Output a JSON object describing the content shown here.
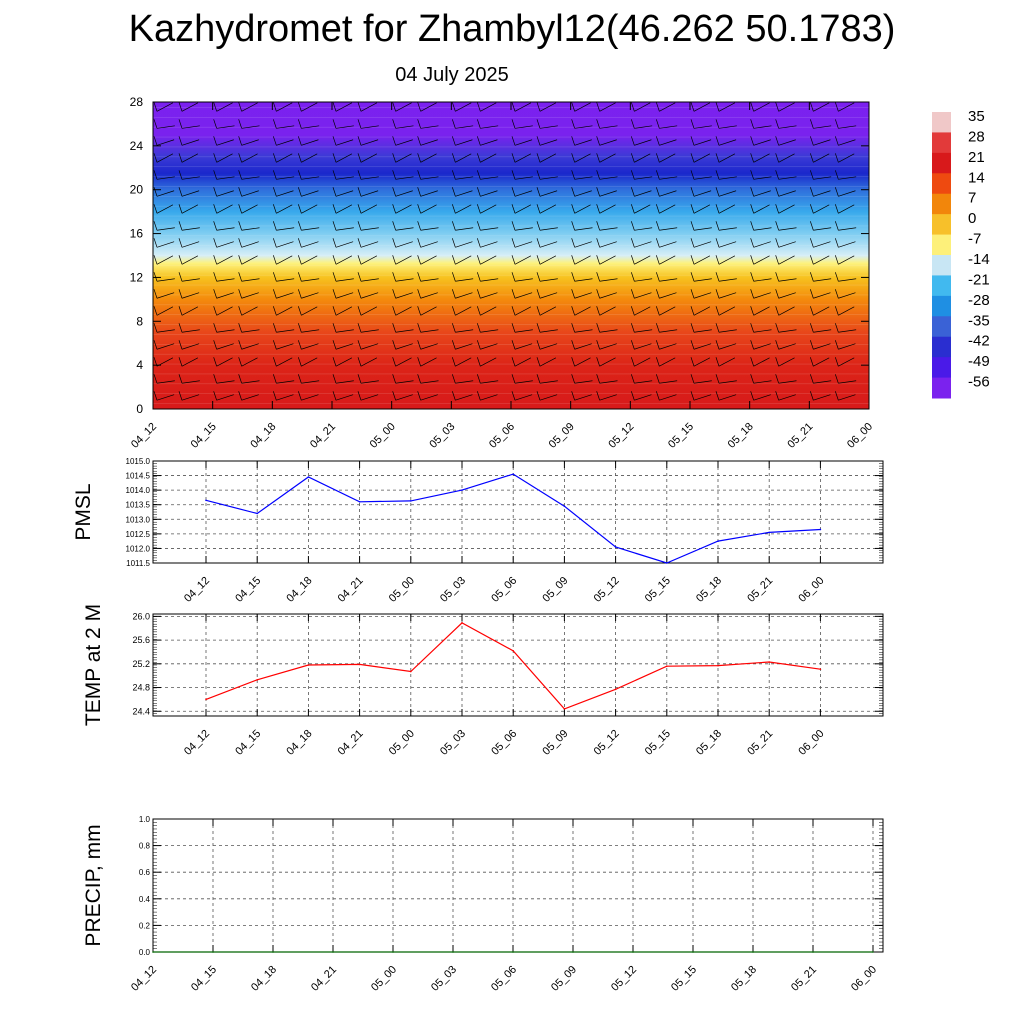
{
  "title": "Kazhydromet for Zhambyl12(46.262 50.1783)",
  "subtitle": "04 July 2025",
  "colorbar": {
    "labels": [
      "35",
      "28",
      "21",
      "14",
      "7",
      "0",
      "-7",
      "-14",
      "-21",
      "-28",
      "-35",
      "-42",
      "-49",
      "-56"
    ],
    "colors": [
      "#f0c8c8",
      "#e23a3a",
      "#d8191b",
      "#ee4a10",
      "#f2860b",
      "#f7c02a",
      "#fdf07a",
      "#c8e6f4",
      "#41b9ef",
      "#1f8fe3",
      "#3a62d6",
      "#2a2ed0",
      "#4a1ae8",
      "#7b22ee"
    ]
  },
  "chart_data": [
    {
      "type": "heatmap",
      "name": "vertical-temperature-wind",
      "x": [
        "04_12",
        "04_15",
        "04_18",
        "04_21",
        "05_00",
        "05_03",
        "05_06",
        "05_09",
        "05_12",
        "05_15",
        "05_18",
        "05_21",
        "06_00"
      ],
      "y_ticks": [
        "0",
        "4",
        "8",
        "12",
        "16",
        "20",
        "24",
        "28"
      ],
      "ylim": [
        0,
        28
      ],
      "color_stops": [
        {
          "y": 0,
          "value": 33,
          "color": "#d71a1a"
        },
        {
          "y": 4,
          "value": 30,
          "color": "#dc2418"
        },
        {
          "y": 7,
          "value": 21,
          "color": "#e8471a"
        },
        {
          "y": 10,
          "value": 7,
          "color": "#f48a0c"
        },
        {
          "y": 12,
          "value": 0,
          "color": "#f7c21f"
        },
        {
          "y": 13.3,
          "value": -7,
          "color": "#fdf27e"
        },
        {
          "y": 14,
          "value": -14,
          "color": "#d6eef7"
        },
        {
          "y": 16,
          "value": -28,
          "color": "#7fcdf1"
        },
        {
          "y": 18,
          "value": -35,
          "color": "#38a9ec"
        },
        {
          "y": 20,
          "value": -42,
          "color": "#2f6fdc"
        },
        {
          "y": 21.5,
          "value": -56,
          "color": "#1a27cc"
        },
        {
          "y": 23,
          "value": -49,
          "color": "#3b3ad6"
        },
        {
          "y": 25,
          "value": -56,
          "color": "#7a22ee"
        },
        {
          "y": 28,
          "value": -56,
          "color": "#7b21ef"
        }
      ],
      "wind_barbs": true
    },
    {
      "type": "line",
      "name": "pmsl",
      "ylabel": "PMSL",
      "x": [
        "04_12",
        "04_15",
        "04_18",
        "04_21",
        "05_00",
        "05_03",
        "05_06",
        "05_09",
        "05_12",
        "05_15",
        "05_18",
        "05_21",
        "06_00"
      ],
      "y": [
        1013.65,
        1013.2,
        1014.45,
        1013.6,
        1013.63,
        1014.0,
        1014.55,
        1013.45,
        1012.05,
        1011.5,
        1012.25,
        1012.55,
        1012.65
      ],
      "ylim": [
        1011.5,
        1015.0
      ],
      "y_ticks": [
        "1011.5",
        "1012.0",
        "1012.5",
        "1013.0",
        "1013.5",
        "1014.0",
        "1014.5",
        "1015.0"
      ],
      "color": "#0000ff",
      "grid": true
    },
    {
      "type": "line",
      "name": "temp-2m",
      "ylabel": "TEMP at 2 M",
      "x": [
        "04_12",
        "04_15",
        "04_18",
        "04_21",
        "05_00",
        "05_03",
        "05_06",
        "05_09",
        "05_12",
        "05_15",
        "05_18",
        "05_21",
        "06_00"
      ],
      "y": [
        24.6,
        24.93,
        25.18,
        25.19,
        25.07,
        25.89,
        25.42,
        24.44,
        24.77,
        25.16,
        25.17,
        25.23,
        25.11
      ],
      "ylim": [
        24.32,
        26.04
      ],
      "y_ticks": [
        "24.4",
        "24.8",
        "25.2",
        "25.6",
        "26.0"
      ],
      "color": "#ff0000",
      "grid": true
    },
    {
      "type": "line",
      "name": "precip",
      "ylabel": "PRECIP, mm",
      "x": [
        "04_12",
        "04_15",
        "04_18",
        "04_21",
        "05_00",
        "05_03",
        "05_06",
        "05_09",
        "05_12",
        "05_15",
        "05_18",
        "05_21",
        "06_00"
      ],
      "y": [
        0,
        0,
        0,
        0,
        0,
        0,
        0,
        0,
        0,
        0,
        0,
        0,
        0
      ],
      "ylim": [
        0,
        1.0
      ],
      "y_ticks": [
        "0.0",
        "0.2",
        "0.4",
        "0.6",
        "0.8",
        "1.0"
      ],
      "color": "#006400",
      "grid": true
    }
  ]
}
